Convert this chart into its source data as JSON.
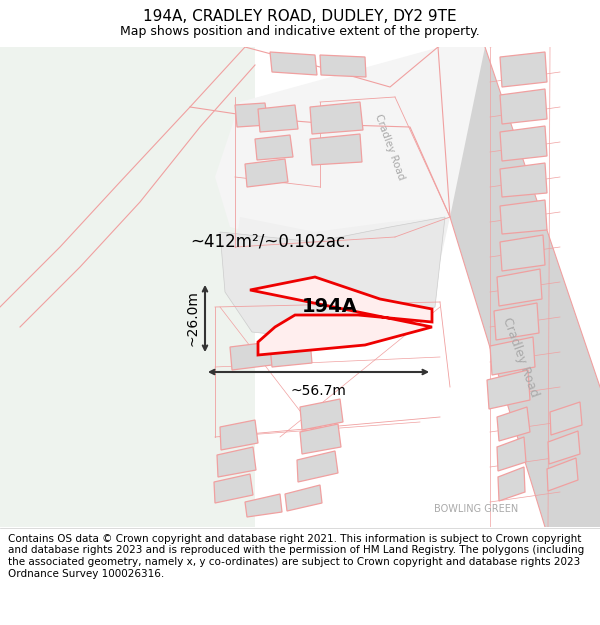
{
  "title_line1": "194A, CRADLEY ROAD, DUDLEY, DY2 9TE",
  "title_line2": "Map shows position and indicative extent of the property.",
  "footer_text": "Contains OS data © Crown copyright and database right 2021. This information is subject to Crown copyright and database rights 2023 and is reproduced with the permission of HM Land Registry. The polygons (including the associated geometry, namely x, y co-ordinates) are subject to Crown copyright and database rights 2023 Ordnance Survey 100026316.",
  "area_label": "~412m²/~0.102ac.",
  "label_194a": "194A",
  "width_label": "~56.7m",
  "height_label": "~26.0m",
  "road_label_top": "Cradley Road",
  "road_label_right": "Cradley Road",
  "corner_label": "BOWLING GREEN",
  "bg_green": "#eef3ee",
  "bg_white": "#f8f8f8",
  "road_gray": "#d0d0d0",
  "building_fill": "#d8d8d8",
  "building_stroke": "#f0a0a0",
  "parcel_line": "#f0a0a0",
  "red_poly": "#ee0000",
  "dim_color": "#333333",
  "title_fontsize": 11,
  "subtitle_fontsize": 9,
  "footer_fontsize": 7.5
}
